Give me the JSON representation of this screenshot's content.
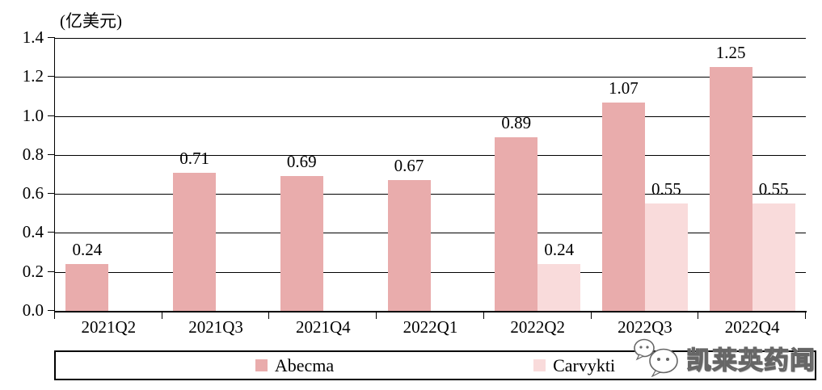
{
  "chart_data": {
    "type": "bar",
    "unit_label": "(亿美元)",
    "categories": [
      "2021Q2",
      "2021Q3",
      "2021Q4",
      "2022Q1",
      "2022Q2",
      "2022Q3",
      "2022Q4"
    ],
    "series": [
      {
        "name": "Abecma",
        "color": "#e9acac",
        "values": [
          0.24,
          0.71,
          0.69,
          0.67,
          0.89,
          1.07,
          1.25
        ]
      },
      {
        "name": "Carvykti",
        "color": "#f9dbdb",
        "values": [
          null,
          null,
          null,
          null,
          0.24,
          0.55,
          0.55
        ]
      }
    ],
    "ylim": [
      0,
      1.4
    ],
    "ytick_step": 0.2,
    "yticks": [
      "1.4",
      "1.2",
      "1.0",
      "0.8",
      "0.6",
      "0.4",
      "0.2",
      "0.0"
    ],
    "grid": true,
    "legend_position": "bottom",
    "axis_color": "#000000"
  },
  "watermark": {
    "text": "凯莱英药闻",
    "icon": "wechat-icon"
  }
}
